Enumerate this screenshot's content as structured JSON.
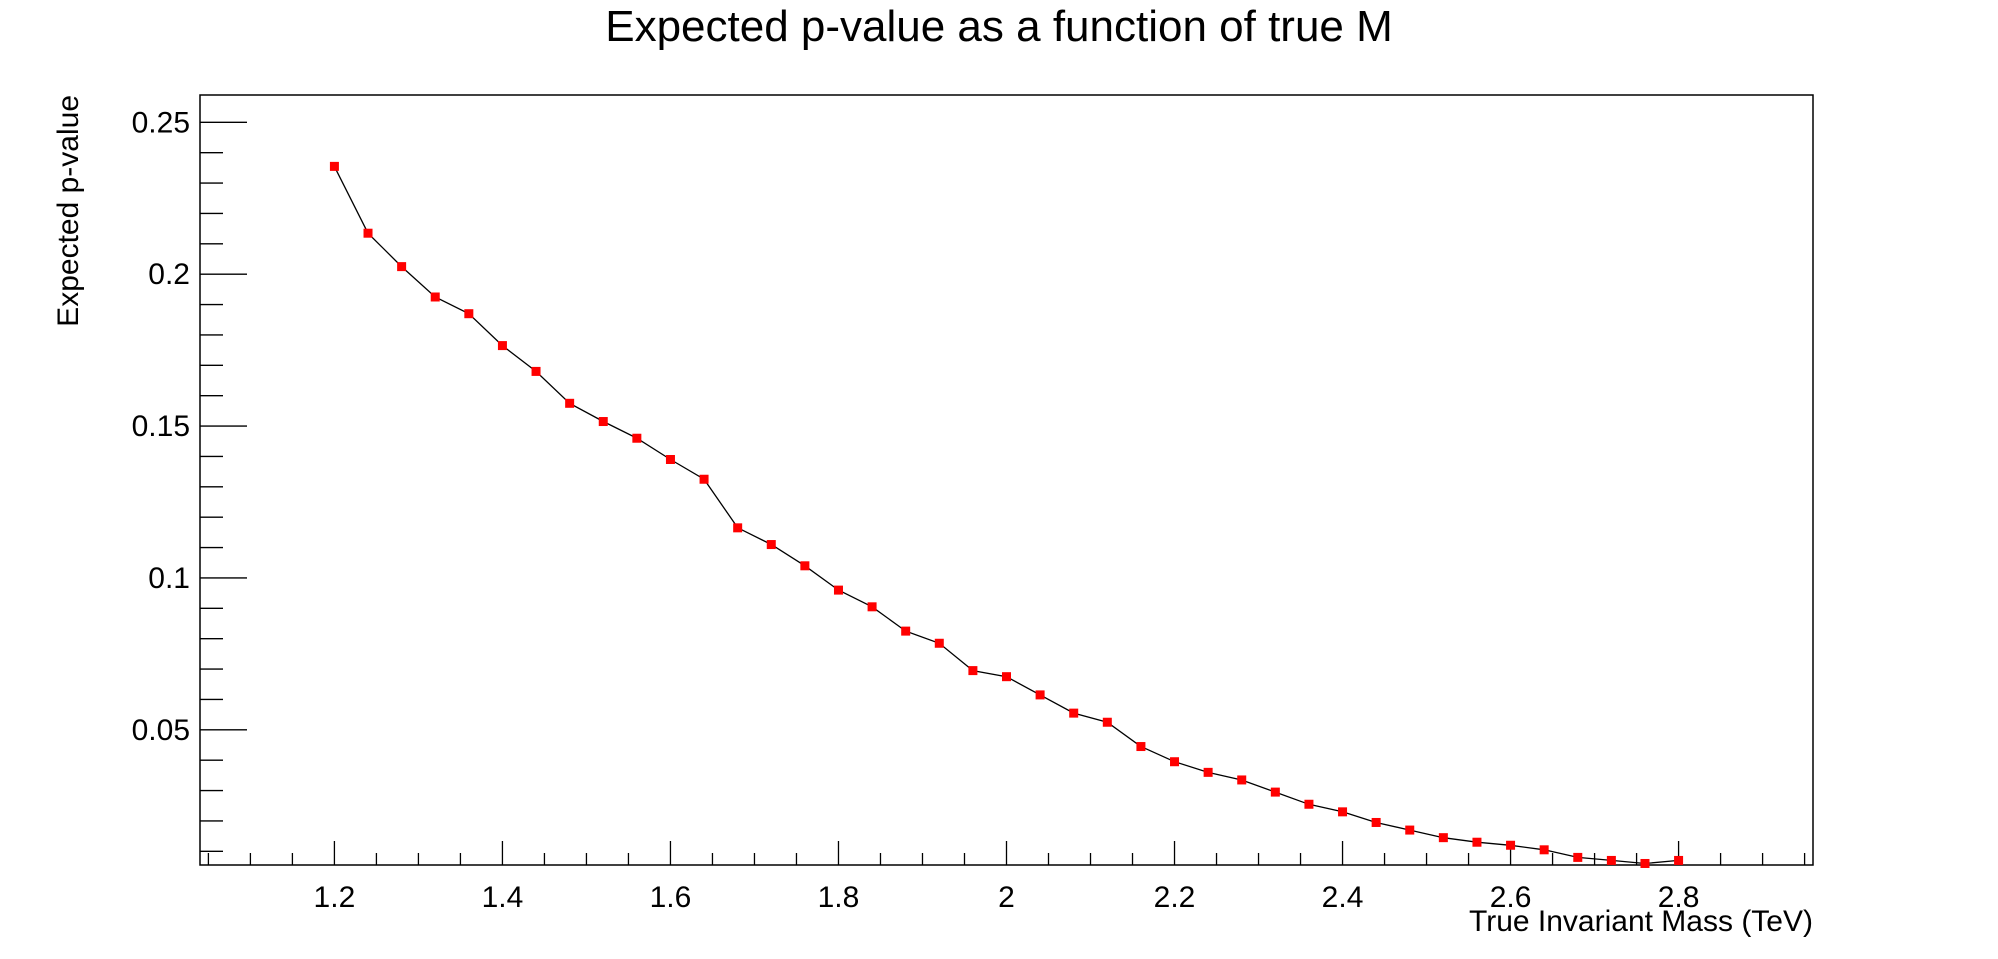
{
  "chart_data": {
    "type": "line",
    "title": "Expected p-value as a function of true M",
    "xlabel": "True Invariant Mass (TeV)",
    "ylabel": "Expected p-value",
    "xlim": [
      1.04,
      2.96
    ],
    "ylim": [
      0.0055,
      0.259
    ],
    "grid": false,
    "legend": "none",
    "x_ticks": [
      1.2,
      1.4,
      1.6,
      1.8,
      2,
      2.2,
      2.4,
      2.6,
      2.8
    ],
    "x_tick_labels": [
      "1.2",
      "1.4",
      "1.6",
      "1.8",
      "2",
      "2.2",
      "2.4",
      "2.6",
      "2.8"
    ],
    "y_ticks": [
      0.05,
      0.1,
      0.15,
      0.2,
      0.25
    ],
    "y_tick_labels": [
      "0.05",
      "0.1",
      "0.15",
      "0.2",
      "0.25"
    ],
    "marker_color": "#ff0000",
    "line_color": "#000000",
    "series": [
      {
        "x": [
          1.2,
          1.24,
          1.28,
          1.32,
          1.36,
          1.4,
          1.44,
          1.48,
          1.52,
          1.56,
          1.6,
          1.64,
          1.68,
          1.72,
          1.76,
          1.8,
          1.84,
          1.88,
          1.92,
          1.96,
          2.0,
          2.04,
          2.08,
          2.12,
          2.16,
          2.2,
          2.24,
          2.28,
          2.32,
          2.36,
          2.4,
          2.44,
          2.48,
          2.52,
          2.56,
          2.6,
          2.64,
          2.68,
          2.72,
          2.76,
          2.8
        ],
        "values": [
          0.2355,
          0.2135,
          0.2025,
          0.1925,
          0.187,
          0.1765,
          0.168,
          0.1575,
          0.1515,
          0.146,
          0.139,
          0.1325,
          0.1165,
          0.111,
          0.104,
          0.096,
          0.0905,
          0.0825,
          0.0785,
          0.0695,
          0.0675,
          0.0615,
          0.0555,
          0.0525,
          0.0445,
          0.0395,
          0.036,
          0.0335,
          0.0295,
          0.0255,
          0.023,
          0.0195,
          0.017,
          0.0145,
          0.013,
          0.012,
          0.0105,
          0.008,
          0.007,
          0.006,
          0.007
        ]
      }
    ]
  }
}
